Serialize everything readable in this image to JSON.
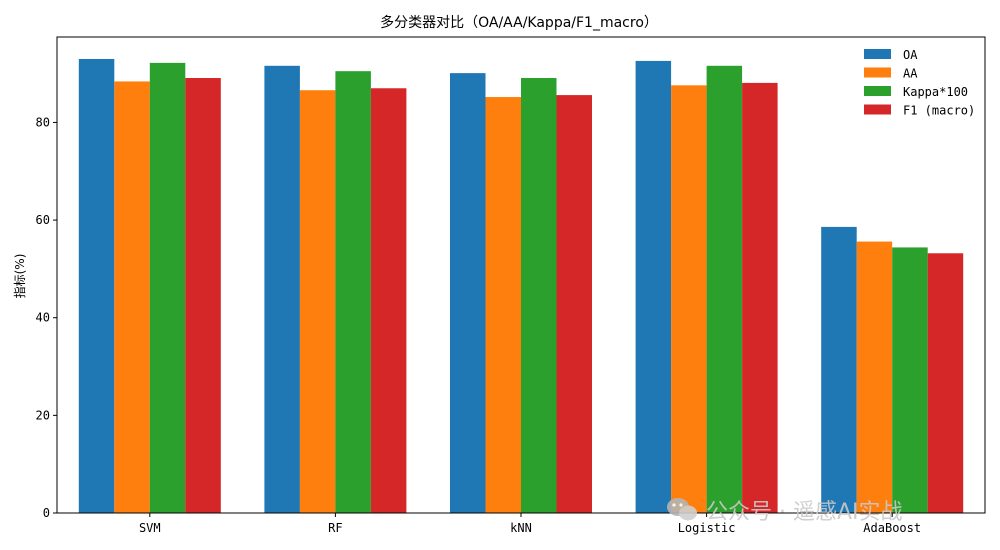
{
  "chart_data": {
    "type": "bar",
    "title": "多分类器对比（OA/AA/Kappa/F1_macro）",
    "xlabel": "",
    "ylabel": "指标(%)",
    "ylim": [
      0,
      97.5
    ],
    "yticks": [
      0,
      20,
      40,
      60,
      80
    ],
    "categories": [
      "SVM",
      "RF",
      "kNN",
      "Logistic",
      "AdaBoost"
    ],
    "series": [
      {
        "name": "OA",
        "color": "#1f77b4",
        "values": [
          93.0,
          91.6,
          90.1,
          92.6,
          58.6
        ]
      },
      {
        "name": "AA",
        "color": "#ff7f0e",
        "values": [
          88.4,
          86.6,
          85.2,
          87.6,
          55.6
        ]
      },
      {
        "name": "Kappa*100",
        "color": "#2ca02c",
        "values": [
          92.2,
          90.5,
          89.1,
          91.6,
          54.4
        ]
      },
      {
        "name": "F1 (macro)",
        "color": "#d62728",
        "values": [
          89.1,
          87.0,
          85.6,
          88.1,
          53.2
        ]
      }
    ],
    "grid": false,
    "legend_position": "top-right"
  },
  "watermark": {
    "text": "公众号 · 遥感AI实战",
    "icon": "wechat-icon"
  }
}
